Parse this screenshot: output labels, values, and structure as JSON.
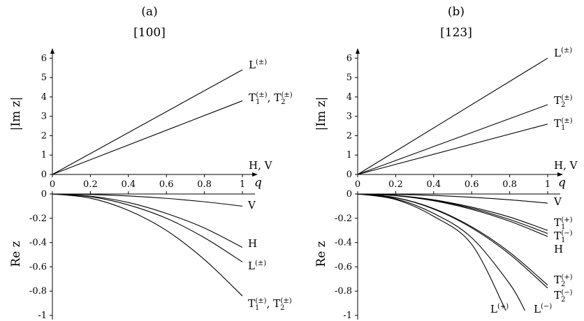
{
  "chart_data": [
    {
      "type": "line",
      "panel_label": "(a)",
      "title": "[100]",
      "x": {
        "label": "q",
        "lim": [
          0,
          1
        ],
        "ticks": [
          0,
          0.2,
          0.4,
          0.6,
          0.8,
          1
        ],
        "tick_labels": [
          "0",
          "0.2",
          "0.4",
          "0.6",
          "0.8",
          "1"
        ]
      },
      "top": {
        "ylabel": "|Im z|",
        "ylim": [
          0,
          6.3
        ],
        "yticks": [
          0,
          1,
          2,
          3,
          4,
          5,
          6
        ],
        "ytick_labels": [
          "0",
          "1",
          "2",
          "3",
          "4",
          "5",
          "6"
        ],
        "series": [
          {
            "name": "L(±)",
            "x": [
              0,
              1
            ],
            "y": [
              0,
              5.4
            ]
          },
          {
            "name": "T1(±), T2(±)",
            "x": [
              0,
              1
            ],
            "y": [
              0,
              3.8
            ]
          },
          {
            "name": "H, V",
            "x": [
              0,
              1
            ],
            "y": [
              0,
              0
            ]
          }
        ],
        "labels": [
          {
            "series": 0,
            "base": "L",
            "sup": "(±)"
          },
          {
            "series": 1,
            "parts": [
              {
                "base": "T",
                "sub": "1",
                "sup": "(±)"
              },
              {
                "sep": ",  "
              },
              {
                "base": "T",
                "sub": "2",
                "sup": "(±)"
              }
            ]
          },
          {
            "series": 2,
            "base": "H, V"
          }
        ]
      },
      "bottom": {
        "ylabel": "Re z",
        "ylim": [
          -1,
          0
        ],
        "yticks": [
          0,
          -0.2,
          -0.4,
          -0.6,
          -0.8,
          -1
        ],
        "ytick_labels": [
          "0",
          "-0.2",
          "-0.4",
          "-0.6",
          "-0.8",
          "-1"
        ],
        "series": [
          {
            "name": "V",
            "x": [
              0,
              0.2,
              0.4,
              0.6,
              0.8,
              1
            ],
            "y": [
              0,
              -0.004,
              -0.016,
              -0.036,
              -0.064,
              -0.1
            ]
          },
          {
            "name": "H",
            "x": [
              0,
              0.2,
              0.4,
              0.6,
              0.8,
              1
            ],
            "y": [
              0,
              -0.018,
              -0.07,
              -0.16,
              -0.28,
              -0.44
            ]
          },
          {
            "name": "L(±)",
            "x": [
              0,
              0.2,
              0.4,
              0.6,
              0.8,
              1
            ],
            "y": [
              0,
              -0.022,
              -0.09,
              -0.2,
              -0.36,
              -0.56
            ]
          },
          {
            "name": "T1(±), T2(±)",
            "x": [
              0,
              0.2,
              0.4,
              0.6,
              0.8,
              1
            ],
            "y": [
              0,
              -0.034,
              -0.135,
              -0.3,
              -0.54,
              -0.84
            ]
          }
        ],
        "labels": [
          {
            "series": 0,
            "base": "V"
          },
          {
            "series": 1,
            "base": "H"
          },
          {
            "series": 2,
            "base": "L",
            "sup": "(±)"
          },
          {
            "series": 3,
            "parts": [
              {
                "base": "T",
                "sub": "1",
                "sup": "(±)"
              },
              {
                "sep": ",  "
              },
              {
                "base": "T",
                "sub": "2",
                "sup": "(±)"
              }
            ]
          }
        ]
      }
    },
    {
      "type": "line",
      "panel_label": "(b)",
      "title": "[123]",
      "x": {
        "label": "q",
        "lim": [
          0,
          1
        ],
        "ticks": [
          0,
          0.2,
          0.4,
          0.6,
          0.8,
          1
        ],
        "tick_labels": [
          "0",
          "0.2",
          "0.4",
          "0.6",
          "0.8",
          "1"
        ]
      },
      "top": {
        "ylabel": "|Im z|",
        "ylim": [
          0,
          6.3
        ],
        "yticks": [
          0,
          1,
          2,
          3,
          4,
          5,
          6
        ],
        "ytick_labels": [
          "0",
          "1",
          "2",
          "3",
          "4",
          "5",
          "6"
        ],
        "series": [
          {
            "name": "L(±)",
            "x": [
              0,
              1
            ],
            "y": [
              0,
              6.0
            ]
          },
          {
            "name": "T2(±)",
            "x": [
              0,
              1
            ],
            "y": [
              0,
              3.6
            ]
          },
          {
            "name": "T1(±)",
            "x": [
              0,
              1
            ],
            "y": [
              0,
              2.6
            ]
          },
          {
            "name": "H, V",
            "x": [
              0,
              1
            ],
            "y": [
              0,
              0
            ]
          }
        ],
        "labels": [
          {
            "series": 0,
            "base": "L",
            "sup": "(±)"
          },
          {
            "series": 1,
            "base": "T",
            "sub": "2",
            "sup": "(±)"
          },
          {
            "series": 2,
            "base": "T",
            "sub": "1",
            "sup": "(±)"
          },
          {
            "series": 3,
            "base": "H, V"
          }
        ]
      },
      "bottom": {
        "ylabel": "Re z",
        "ylim": [
          -1,
          0
        ],
        "yticks": [
          0,
          -0.2,
          -0.4,
          -0.6,
          -0.8,
          -1
        ],
        "ytick_labels": [
          "0",
          "-0.2",
          "-0.4",
          "-0.6",
          "-0.8",
          "-1"
        ],
        "series": [
          {
            "name": "V",
            "x": [
              0,
              0.2,
              0.4,
              0.6,
              0.8,
              1
            ],
            "y": [
              0,
              -0.003,
              -0.012,
              -0.027,
              -0.048,
              -0.075
            ]
          },
          {
            "name": "T1(+)",
            "x": [
              0,
              0.2,
              0.4,
              0.6,
              0.8,
              1
            ],
            "y": [
              0,
              -0.012,
              -0.048,
              -0.108,
              -0.19,
              -0.3
            ]
          },
          {
            "name": "T1(-)",
            "x": [
              0,
              0.2,
              0.4,
              0.6,
              0.8,
              1
            ],
            "y": [
              0,
              -0.013,
              -0.052,
              -0.117,
              -0.21,
              -0.325
            ]
          },
          {
            "name": "H",
            "x": [
              0,
              0.2,
              0.4,
              0.6,
              0.8,
              1
            ],
            "y": [
              0,
              -0.014,
              -0.056,
              -0.126,
              -0.224,
              -0.35
            ]
          },
          {
            "name": "T2(+)",
            "x": [
              0,
              0.2,
              0.4,
              0.6,
              0.8,
              1
            ],
            "y": [
              0,
              -0.03,
              -0.12,
              -0.27,
              -0.48,
              -0.75
            ]
          },
          {
            "name": "T2(-)",
            "x": [
              0,
              0.2,
              0.4,
              0.6,
              0.8,
              1
            ],
            "y": [
              0,
              -0.031,
              -0.124,
              -0.279,
              -0.496,
              -0.775
            ]
          },
          {
            "name": "L(+)",
            "x": [
              0,
              0.2,
              0.4,
              0.6,
              0.78
            ],
            "y": [
              0,
              -0.046,
              -0.184,
              -0.414,
              -0.96
            ]
          },
          {
            "name": "L(-)",
            "x": [
              0,
              0.2,
              0.4,
              0.6,
              0.8,
              0.88
            ],
            "y": [
              0,
              -0.04,
              -0.16,
              -0.36,
              -0.74,
              -0.96
            ]
          }
        ],
        "labels": [
          {
            "series": 0,
            "base": "V"
          },
          {
            "series": 1,
            "base": "T",
            "sub": "1",
            "sup": "(+)"
          },
          {
            "series": 2,
            "base": "T",
            "sub": "1",
            "sup": "(−)"
          },
          {
            "series": 3,
            "base": "H"
          },
          {
            "series": 4,
            "base": "T",
            "sub": "2",
            "sup": "(+)"
          },
          {
            "series": 5,
            "base": "T",
            "sub": "2",
            "sup": "(−)"
          },
          {
            "series": 6,
            "base": "L",
            "sup": "(+)"
          },
          {
            "series": 7,
            "base": "L",
            "sup": "(−)"
          }
        ]
      }
    }
  ]
}
